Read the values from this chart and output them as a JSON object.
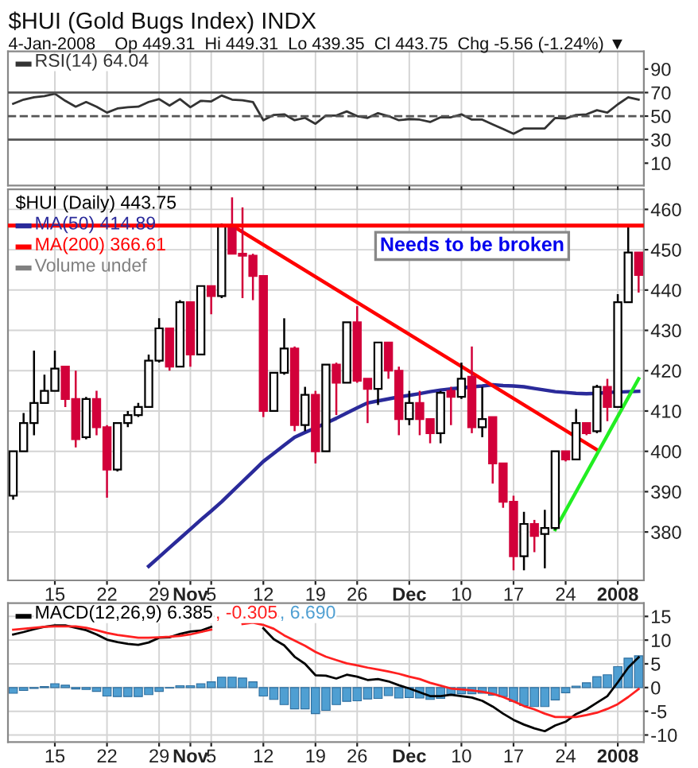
{
  "chart_data": [
    {
      "type": "line",
      "title": "$HUI (Gold Bugs Index) INDX",
      "subtitle": "4-Jan-2008    Op 449.31  Hi 449.31  Lo 439.35  Cl 443.75  Chg -5.56 (-1.24%) ▼",
      "categories": [
        null,
        null,
        null,
        null,
        null,
        null,
        null,
        null,
        null,
        null,
        null,
        null,
        null,
        null,
        null,
        null,
        null,
        null,
        null,
        null,
        null,
        null,
        null,
        null,
        null,
        null,
        null,
        null,
        null,
        null,
        null,
        null,
        null,
        null,
        null,
        null,
        null,
        null,
        null,
        null,
        null,
        null,
        null,
        null,
        null,
        null,
        null,
        null,
        null,
        null,
        null,
        null,
        null,
        null,
        null,
        null,
        null,
        null,
        null,
        null,
        null
      ],
      "series": [
        {
          "name": "RSI(14) 64.04",
          "color": "#333333",
          "values": [
            60.5,
            64,
            66,
            67,
            69,
            63,
            58,
            62,
            58,
            53,
            56.5,
            57.5,
            58,
            62,
            64.5,
            59,
            64.5,
            57.5,
            63,
            62.5,
            67.5,
            64,
            63.5,
            62,
            46.5,
            51,
            51.5,
            46.5,
            48.5,
            43.5,
            50.5,
            50.5,
            54,
            50,
            48.5,
            52.5,
            50,
            46.5,
            47.5,
            47,
            45,
            49,
            49,
            51.5,
            47,
            47,
            43,
            39,
            35,
            39.5,
            39.5,
            39.5,
            48.5,
            48,
            51,
            51.5,
            55,
            53,
            60,
            66,
            64.04
          ]
        }
      ],
      "ylim": [
        -9,
        105
      ],
      "yticks": [
        10,
        30,
        50,
        70,
        90
      ],
      "grid": "x",
      "legend": "top left",
      "tick_labels": "y",
      "ref_lines": [
        {
          "axis": "y",
          "value": 70,
          "color": "#555555",
          "line_style": "solid"
        },
        {
          "axis": "y",
          "value": 50,
          "color": "#555555",
          "line_style": "dashed"
        },
        {
          "axis": "y",
          "value": 30,
          "color": "#555555",
          "line_style": "solid"
        }
      ]
    },
    {
      "type": "candlestick",
      "categories": [
        null,
        null,
        null,
        null,
        "15",
        null,
        null,
        null,
        null,
        "22",
        null,
        null,
        null,
        null,
        "29",
        null,
        null,
        "Nov",
        null,
        "5",
        null,
        null,
        null,
        null,
        "12",
        null,
        null,
        null,
        null,
        "19",
        null,
        null,
        null,
        "26",
        null,
        null,
        null,
        null,
        "Dec",
        null,
        null,
        null,
        null,
        "10",
        null,
        null,
        null,
        null,
        "17",
        null,
        null,
        null,
        null,
        "24",
        null,
        null,
        null,
        null,
        "2008",
        null,
        null
      ],
      "series": [
        {
          "type": "candlestick",
          "name": "$HUI (Daily) 443.75",
          "colors": [
            "#ffffff",
            "#ffffff",
            "#ffffff",
            "#ffffff",
            "#ffffff",
            "#d2003a",
            "#d2003a",
            "#ffffff",
            "#d2003a",
            "#d2003a",
            "#ffffff",
            "#ffffff",
            "#ffffff",
            "#ffffff",
            "#ffffff",
            "#d2003a",
            "#ffffff",
            "#d2003a",
            "#ffffff",
            "#d2003a",
            "#ffffff",
            "#d2003a",
            "#d2003a",
            "#d2003a",
            "#d2003a",
            "#ffffff",
            "#ffffff",
            "#d2003a",
            "#ffffff",
            "#d2003a",
            "#ffffff",
            "#d2003a",
            "#ffffff",
            "#d2003a",
            "#d2003a",
            "#ffffff",
            "#d2003a",
            "#d2003a",
            "#ffffff",
            "#d2003a",
            "#d2003a",
            "#ffffff",
            "#d2003a",
            "#ffffff",
            "#d2003a",
            "#ffffff",
            "#d2003a",
            "#d2003a",
            "#d2003a",
            "#ffffff",
            "#d2003a",
            "#ffffff",
            "#ffffff",
            "#d2003a",
            "#ffffff",
            "#d2003a",
            "#ffffff",
            "#d2003a",
            "#ffffff",
            "#ffffff",
            "#d2003a"
          ],
          "ohlc": [
            [
              389,
              400,
              388,
              400
            ],
            [
              400,
              409.5,
              400,
              407
            ],
            [
              407,
              425,
              404,
              412
            ],
            [
              412,
              419,
              412,
              415
            ],
            [
              415,
              425,
              415,
              420.5
            ],
            [
              421,
              421,
              411,
              413
            ],
            [
              413,
              420,
              401,
              403
            ],
            [
              403.5,
              413.5,
              403,
              413
            ],
            [
              413,
              415,
              404,
              406
            ],
            [
              406,
              406.5,
              388.5,
              395.5
            ],
            [
              395.5,
              407,
              395,
              407
            ],
            [
              407,
              410,
              406,
              409
            ],
            [
              409,
              412,
              408.5,
              411
            ],
            [
              411,
              424,
              411,
              422.5
            ],
            [
              422.5,
              433,
              422,
              430.5
            ],
            [
              430.5,
              430.5,
              420,
              421
            ],
            [
              421,
              437.5,
              421,
              437
            ],
            [
              437,
              437,
              421,
              424
            ],
            [
              424,
              441,
              424,
              441
            ],
            [
              441,
              441,
              434,
              438.5
            ],
            [
              438.5,
              456.5,
              438,
              456
            ],
            [
              456,
              463,
              449,
              449
            ],
            [
              449,
              460.5,
              438,
              448.5
            ],
            [
              448.5,
              449,
              437.5,
              443.5
            ],
            [
              443.5,
              443.5,
              408.5,
              410
            ],
            [
              410,
              419.5,
              410,
              419.5
            ],
            [
              419.5,
              433,
              419,
              425.5
            ],
            [
              425.5,
              426,
              405,
              406.5
            ],
            [
              406.5,
              416,
              405,
              414
            ],
            [
              414,
              415,
              397,
              400
            ],
            [
              400,
              421.5,
              400,
              421.5
            ],
            [
              421.5,
              422,
              409,
              417
            ],
            [
              417,
              432,
              417,
              432
            ],
            [
              432,
              436,
              417,
              417.5
            ],
            [
              418,
              418,
              407,
              415.5
            ],
            [
              415.5,
              427,
              411.5,
              427
            ],
            [
              427,
              427,
              418,
              420
            ],
            [
              420,
              421,
              404,
              408
            ],
            [
              408,
              415,
              406.5,
              412
            ],
            [
              412,
              415,
              404,
              408
            ],
            [
              408,
              408,
              402,
              404.5
            ],
            [
              404.5,
              415,
              402,
              414.5
            ],
            [
              415,
              416,
              406.5,
              413.5
            ],
            [
              413.5,
              422,
              413,
              418
            ],
            [
              418.5,
              426,
              404.5,
              406
            ],
            [
              406,
              416,
              403.5,
              408
            ],
            [
              408.5,
              408.5,
              392,
              397
            ],
            [
              397,
              397,
              386,
              387.5
            ],
            [
              387.5,
              389,
              370.5,
              374
            ],
            [
              374,
              385,
              370.5,
              382
            ],
            [
              382,
              383,
              375,
              379
            ],
            [
              379.5,
              385.5,
              371,
              381
            ],
            [
              381,
              400,
              380.5,
              400
            ],
            [
              400,
              400,
              397.5,
              398
            ],
            [
              398,
              410.5,
              398,
              407
            ],
            [
              407,
              407,
              404,
              404.5
            ],
            [
              405,
              416.5,
              404.5,
              416
            ],
            [
              416,
              418,
              407.5,
              411
            ],
            [
              411,
              439,
              411,
              437
            ],
            [
              437,
              456,
              437,
              449.31
            ],
            [
              449.31,
              449.31,
              439.35,
              443.75
            ]
          ]
        },
        {
          "type": "line",
          "name": "MA(50) 414.89",
          "color": "#2a2a9a",
          "values": [
            null,
            null,
            null,
            null,
            null,
            null,
            null,
            null,
            null,
            null,
            null,
            null,
            null,
            371.5,
            373.8,
            376.1,
            378.4,
            380.7,
            383,
            385.2,
            387.5,
            390,
            392.5,
            395,
            397.5,
            399.5,
            401.5,
            403.5,
            404.7,
            405.8,
            407,
            408.2,
            409.5,
            410.8,
            412,
            412.5,
            413,
            413.5,
            413.9,
            414.3,
            414.8,
            415.2,
            415.5,
            415.7,
            416,
            416.2,
            416.5,
            416.3,
            416.2,
            416,
            415.6,
            415.2,
            414.8,
            414.6,
            414.4,
            414.3,
            414.4,
            414.6,
            414.7,
            414.8,
            414.89
          ]
        },
        {
          "type": "line",
          "name": "MA(200) 366.61",
          "color": "#ff0000",
          "values": [
            null,
            null,
            null,
            null,
            null,
            null,
            null,
            null,
            null,
            null,
            null,
            null,
            null,
            null,
            null,
            null,
            null,
            null,
            null,
            null,
            null,
            null,
            null,
            null,
            null,
            null,
            null,
            null,
            null,
            null,
            null,
            null,
            null,
            null,
            null,
            null,
            null,
            null,
            null,
            null,
            null,
            null,
            null,
            null,
            null,
            null,
            null,
            null,
            null,
            null,
            null,
            null,
            null,
            null,
            null,
            null,
            null,
            null,
            null,
            null,
            null
          ]
        },
        {
          "type": "bar",
          "name": "Volume undef",
          "color": "#808080",
          "values": [
            null,
            null,
            null,
            null,
            null,
            null,
            null,
            null,
            null,
            null,
            null,
            null,
            null,
            null,
            null,
            null,
            null,
            null,
            null,
            null,
            null,
            null,
            null,
            null,
            null,
            null,
            null,
            null,
            null,
            null,
            null,
            null,
            null,
            null,
            null,
            null,
            null,
            null,
            null,
            null,
            null,
            null,
            null,
            null,
            null,
            null,
            null,
            null,
            null,
            null,
            null,
            null,
            null,
            null,
            null,
            null,
            null,
            null,
            null,
            null,
            null
          ]
        },
        {
          "type": "line",
          "color": "#ff0000",
          "values": [
            null,
            null,
            null,
            null,
            null,
            null,
            null,
            null,
            null,
            null,
            null,
            null,
            null,
            null,
            null,
            null,
            null,
            null,
            null,
            null,
            null,
            456,
            null,
            null,
            null,
            null,
            null,
            null,
            null,
            null,
            null,
            null,
            null,
            null,
            null,
            null,
            null,
            null,
            null,
            null,
            null,
            null,
            null,
            null,
            null,
            null,
            null,
            null,
            null,
            null,
            null,
            null,
            null,
            null,
            null,
            null,
            400.4,
            null,
            null,
            null,
            null
          ]
        },
        {
          "type": "line",
          "color": "#22ee22",
          "values": [
            null,
            null,
            null,
            null,
            null,
            null,
            null,
            null,
            null,
            null,
            null,
            null,
            null,
            null,
            null,
            null,
            null,
            null,
            null,
            null,
            null,
            null,
            null,
            null,
            null,
            null,
            null,
            null,
            null,
            null,
            null,
            null,
            null,
            null,
            null,
            null,
            null,
            null,
            null,
            null,
            null,
            null,
            null,
            null,
            null,
            null,
            null,
            null,
            null,
            null,
            null,
            null,
            380.6,
            null,
            null,
            null,
            null,
            null,
            null,
            null,
            418
          ]
        }
      ],
      "ylim": [
        368,
        465
      ],
      "yticks": [
        380,
        390,
        400,
        410,
        420,
        430,
        440,
        450,
        460
      ],
      "grid": true,
      "legend": "top left",
      "ref_lines": [
        {
          "axis": "y",
          "value": 456,
          "color": "#ff0000",
          "line_style": "solid"
        }
      ],
      "annotations": [
        "Needs to be broken"
      ]
    },
    {
      "type": "line",
      "categories": [
        null,
        null,
        null,
        null,
        "15",
        null,
        null,
        null,
        null,
        "22",
        null,
        null,
        null,
        null,
        "29",
        null,
        null,
        "Nov",
        null,
        "5",
        null,
        null,
        null,
        null,
        "12",
        null,
        null,
        null,
        null,
        "19",
        null,
        null,
        null,
        "26",
        null,
        null,
        null,
        null,
        "Dec",
        null,
        null,
        null,
        null,
        "10",
        null,
        null,
        null,
        null,
        "17",
        null,
        null,
        null,
        null,
        "24",
        null,
        null,
        null,
        null,
        "2008",
        null,
        null
      ],
      "series": [
        {
          "type": "line",
          "name": "MACD(12,26,9) 6.385",
          "color": "#000000",
          "values": [
            11.2,
            11.7,
            12.3,
            12.8,
            13.1,
            13.1,
            12.6,
            12.1,
            11.2,
            10.1,
            9.6,
            9.2,
            9,
            9.5,
            10.5,
            10.6,
            11.3,
            11.8,
            12,
            12.8,
            null,
            null,
            null,
            null,
            12.5,
            10.2,
            8.9,
            6.5,
            5,
            2.6,
            2.5,
            1.9,
            2.7,
            2.3,
            1.6,
            1.8,
            1.3,
            0.5,
            -0.2,
            -1,
            -1.8,
            -1.8,
            -1.5,
            -1.8,
            -2.1,
            -2.8,
            -4,
            -5.5,
            -6.8,
            -7.8,
            -8.6,
            -9.2,
            -8,
            -7.2,
            -5.6,
            -4.6,
            -3.2,
            -1.8,
            1.1,
            4.2,
            6.385
          ]
        },
        {
          "type": "line",
          "name": ", -0.305",
          "color": "#ff2020",
          "values": [
            12.2,
            12.4,
            12.6,
            12.8,
            12.9,
            12.9,
            12.9,
            12.6,
            12.1,
            11.5,
            11.1,
            10.8,
            10.5,
            10.5,
            10.6,
            10.7,
            10.9,
            11.2,
            11.7,
            12.2,
            null,
            null,
            13.4,
            13.7,
            13.2,
            12.4,
            11,
            9.9,
            8.8,
            7.5,
            6.5,
            5.8,
            5.1,
            4.7,
            4.2,
            3.8,
            3.4,
            2.9,
            2.3,
            1.8,
            1,
            0.4,
            -0.2,
            -0.4,
            -0.6,
            -0.9,
            -1.3,
            -2,
            -2.9,
            -3.9,
            -4.6,
            -5.5,
            -6.2,
            -6.2,
            -6.2,
            -5.8,
            -5.3,
            -4.5,
            -3.5,
            -2,
            -0.305
          ]
        },
        {
          "type": "bar",
          "name": ", 6.690",
          "color": "#4f9fd2",
          "values": [
            -1.2,
            -0.6,
            -0.2,
            0.2,
            0.8,
            0.5,
            -0.3,
            -0.4,
            -0.8,
            -1.8,
            -1.9,
            -1.9,
            -1.9,
            -1.5,
            -0.8,
            -0.1,
            0.4,
            0.4,
            0.8,
            1.2,
            2.2,
            2.2,
            2,
            1.2,
            -1.8,
            -2.5,
            -3.6,
            -4.5,
            -4.5,
            -5.5,
            -4.8,
            -3.6,
            -2.9,
            -2.8,
            -2.4,
            -2.3,
            -1.7,
            -2.2,
            -2.1,
            -2.2,
            -2.5,
            -2.3,
            -1.4,
            -1.3,
            -1.3,
            -1.2,
            -1.6,
            -1.9,
            -2.9,
            -3.8,
            -4,
            -4,
            -2.6,
            -1.1,
            0.3,
            1,
            2.3,
            2.7,
            4.4,
            6.2,
            6.69
          ]
        }
      ],
      "ylim": [
        -11.5,
        17.8
      ],
      "yticks": [
        -10,
        -5,
        0,
        5,
        10,
        15
      ],
      "grid": true,
      "legend": "top left"
    }
  ]
}
